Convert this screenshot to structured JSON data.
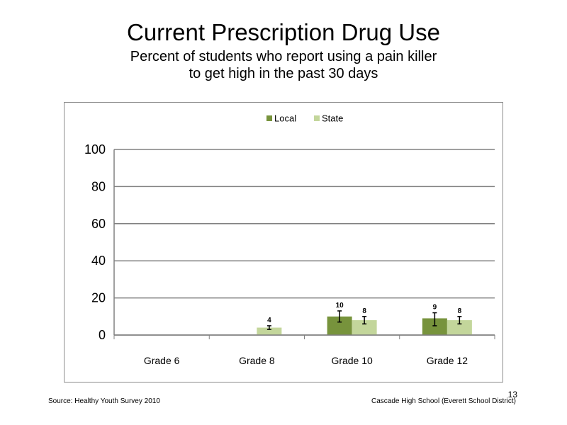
{
  "slide": {
    "title": "Current Prescription Drug Use",
    "subtitle_line1": "Percent of students who report using a pain killer",
    "subtitle_line2": "to get high in the past 30 days",
    "source": "Source: Healthy Youth Survey 2010",
    "page_number": "13",
    "school": "Cascade High School (Everett School District)"
  },
  "chart_data": {
    "type": "bar",
    "title": "",
    "xlabel": "",
    "ylabel": "",
    "ylim": [
      0,
      100
    ],
    "yticks": [
      0,
      20,
      40,
      60,
      80,
      100
    ],
    "grid": true,
    "legend_position": "top-center",
    "categories": [
      "Grade 6",
      "Grade 8",
      "Grade 10",
      "Grade 12"
    ],
    "series": [
      {
        "name": "Local",
        "color": "#77933c",
        "values": [
          null,
          null,
          10,
          9
        ],
        "labels": [
          "",
          "",
          "10",
          "9"
        ],
        "error_low": [
          null,
          null,
          7,
          5
        ],
        "error_high": [
          null,
          null,
          13,
          12
        ]
      },
      {
        "name": "State",
        "color": "#c3d69b",
        "values": [
          null,
          4,
          8,
          8
        ],
        "labels": [
          "",
          "4",
          "8",
          "8"
        ],
        "error_low": [
          null,
          3,
          6,
          6
        ],
        "error_high": [
          null,
          5,
          10,
          10
        ]
      }
    ]
  }
}
